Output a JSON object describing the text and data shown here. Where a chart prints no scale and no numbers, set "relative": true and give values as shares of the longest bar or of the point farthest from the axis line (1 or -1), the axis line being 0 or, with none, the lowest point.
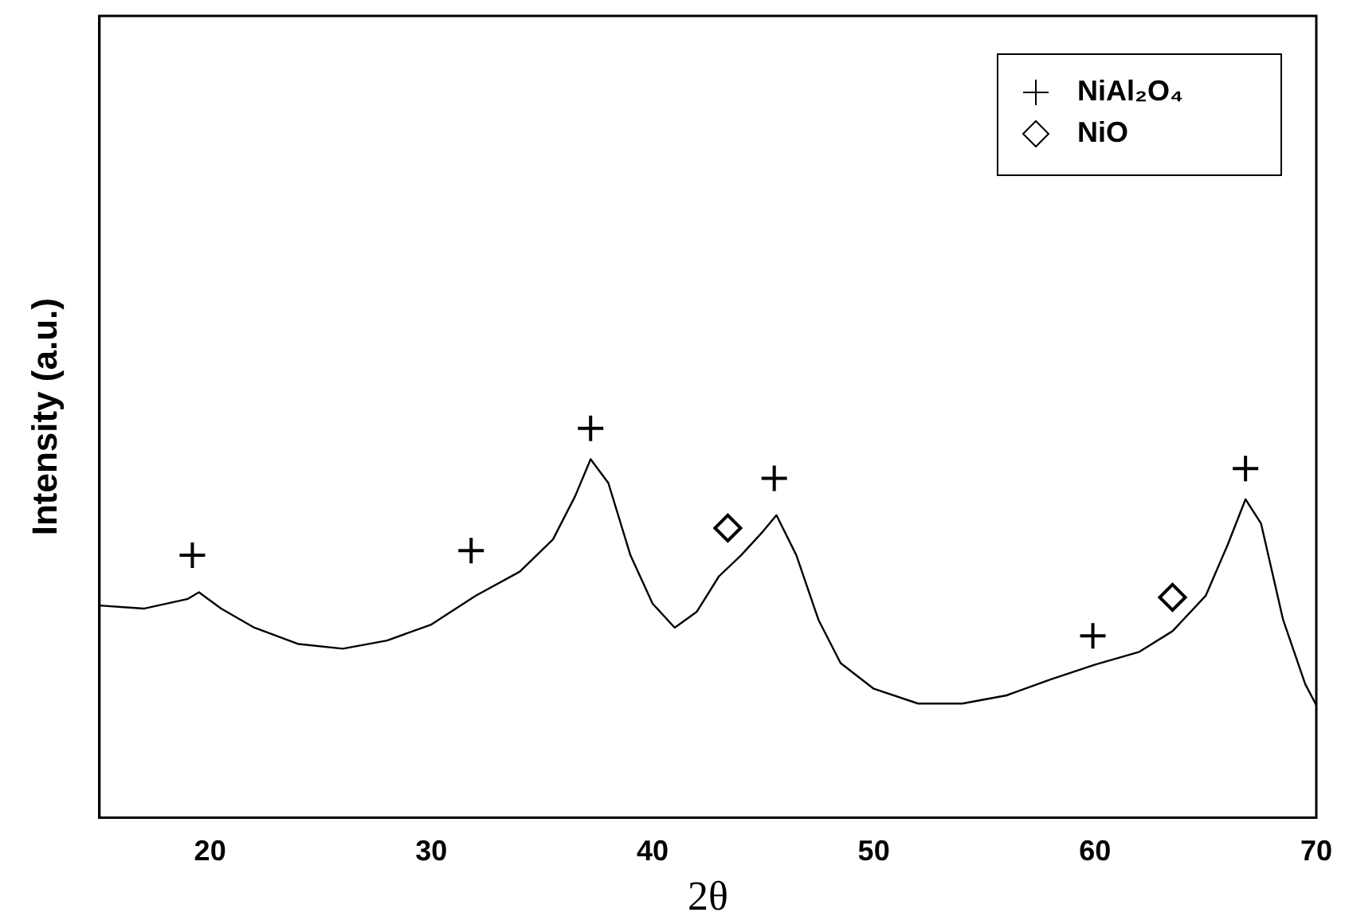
{
  "chart_data": {
    "type": "line",
    "relative": true,
    "xlabel": "2θ",
    "ylabel": "Intensity (a.u.)",
    "xlim": [
      15,
      70
    ],
    "xticks": [
      20,
      30,
      40,
      50,
      60,
      70
    ],
    "grid": false,
    "legend": "top right",
    "series": [
      {
        "color": "#000000",
        "marker": "none",
        "x": [
          15,
          17,
          19,
          19.5,
          20.5,
          22,
          24,
          26,
          28,
          30,
          32,
          34,
          35.5,
          36.5,
          37.2,
          38,
          39,
          40,
          41,
          42,
          43,
          44,
          45,
          45.6,
          46.5,
          47.5,
          48.5,
          50,
          52,
          54,
          56,
          58,
          60,
          62,
          63.5,
          65,
          66,
          66.8,
          67.5,
          68.5,
          69.5,
          70
        ],
        "values": [
          0.545,
          0.537,
          0.562,
          0.579,
          0.537,
          0.488,
          0.446,
          0.434,
          0.455,
          0.496,
          0.57,
          0.632,
          0.715,
          0.826,
          0.921,
          0.86,
          0.674,
          0.55,
          0.488,
          0.529,
          0.62,
          0.674,
          0.736,
          0.777,
          0.674,
          0.508,
          0.397,
          0.331,
          0.293,
          0.293,
          0.314,
          0.355,
          0.393,
          0.426,
          0.479,
          0.57,
          0.702,
          0.818,
          0.756,
          0.508,
          0.343,
          0.289
        ]
      },
      {
        "type": "scatter",
        "name": "NiAl₂O₄",
        "color": "#000000",
        "marker": "cross",
        "x": [
          19.2,
          31.8,
          37.2,
          45.5,
          59.9,
          66.8
        ],
        "values": [
          0.674,
          0.686,
          1,
          0.872,
          0.467,
          0.897
        ]
      },
      {
        "type": "scatter",
        "name": "NiO",
        "color": "#000000",
        "marker": "diamond",
        "x": [
          43.4,
          63.5
        ],
        "values": [
          0.744,
          0.566
        ]
      }
    ]
  }
}
